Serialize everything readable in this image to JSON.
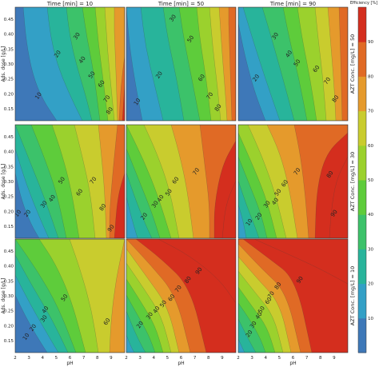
{
  "chart_data": {
    "type": "contour",
    "col_titles": [
      "Time [min] = 10",
      "Time [min] = 50",
      "Time [min] = 90"
    ],
    "row_titles": [
      "AZT Conc. [mg/L] = 50",
      "AZT Conc. [mg/L] = 30",
      "AZT Conc. [mg/L] = 10"
    ],
    "xlabel": "pH",
    "ylabel": "Ads. dose [g/L]",
    "x_ticks": [
      "2",
      "3",
      "4",
      "5",
      "6",
      "7",
      "8",
      "9"
    ],
    "y_ticks": [
      "0.15",
      "0.20",
      "0.25",
      "0.30",
      "0.35",
      "0.40",
      "0.45"
    ],
    "xlim": [
      2,
      10
    ],
    "ylim": [
      0.11,
      0.49
    ],
    "colorbar": {
      "label": "Efficiency [%]",
      "ticks": [
        "10",
        "20",
        "30",
        "40",
        "50",
        "60",
        "70",
        "80",
        "90"
      ],
      "range": [
        0,
        100
      ]
    },
    "levels": [
      10,
      20,
      30,
      40,
      50,
      60,
      70,
      80,
      90
    ],
    "colors": [
      "#3e78b8",
      "#33a0c6",
      "#28b49b",
      "#3cc26a",
      "#5ecc3b",
      "#9bd12d",
      "#c9cc2e",
      "#e59a2c",
      "#e06a25",
      "#d42e1e"
    ],
    "panels": [
      {
        "row": 0,
        "col": 0,
        "contour_labels": [
          {
            "text": "10",
            "x": 3.8,
            "y": 0.19
          },
          {
            "text": "20",
            "x": 5.2,
            "y": 0.33
          },
          {
            "text": "30",
            "x": 6.6,
            "y": 0.39
          },
          {
            "text": "40",
            "x": 7.0,
            "y": 0.31
          },
          {
            "text": "50",
            "x": 7.7,
            "y": 0.26
          },
          {
            "text": "60",
            "x": 8.4,
            "y": 0.23
          },
          {
            "text": "70",
            "x": 8.8,
            "y": 0.18
          },
          {
            "text": "80",
            "x": 9.0,
            "y": 0.14
          }
        ]
      },
      {
        "row": 0,
        "col": 1,
        "contour_labels": [
          {
            "text": "10",
            "x": 2.9,
            "y": 0.17
          },
          {
            "text": "20",
            "x": 4.5,
            "y": 0.26
          },
          {
            "text": "30",
            "x": 5.5,
            "y": 0.45
          },
          {
            "text": "50",
            "x": 6.8,
            "y": 0.38
          },
          {
            "text": "60",
            "x": 7.6,
            "y": 0.25
          },
          {
            "text": "70",
            "x": 8.2,
            "y": 0.19
          },
          {
            "text": "80",
            "x": 8.8,
            "y": 0.15
          }
        ]
      },
      {
        "row": 0,
        "col": 2,
        "contour_labels": [
          {
            "text": "20",
            "x": 3.4,
            "y": 0.25
          },
          {
            "text": "30",
            "x": 4.8,
            "y": 0.39
          },
          {
            "text": "40",
            "x": 5.8,
            "y": 0.33
          },
          {
            "text": "50",
            "x": 6.4,
            "y": 0.3
          },
          {
            "text": "60",
            "x": 7.8,
            "y": 0.28
          },
          {
            "text": "70",
            "x": 8.6,
            "y": 0.24
          },
          {
            "text": "80",
            "x": 9.2,
            "y": 0.18
          }
        ]
      },
      {
        "row": 1,
        "col": 0,
        "contour_labels": [
          {
            "text": "10",
            "x": 2.3,
            "y": 0.19
          },
          {
            "text": "20",
            "x": 3.0,
            "y": 0.19
          },
          {
            "text": "30",
            "x": 4.2,
            "y": 0.22
          },
          {
            "text": "40",
            "x": 4.8,
            "y": 0.24
          },
          {
            "text": "50",
            "x": 5.5,
            "y": 0.3
          },
          {
            "text": "60",
            "x": 6.8,
            "y": 0.26
          },
          {
            "text": "70",
            "x": 7.8,
            "y": 0.3
          },
          {
            "text": "80",
            "x": 8.5,
            "y": 0.21
          },
          {
            "text": "90",
            "x": 9.1,
            "y": 0.14
          }
        ]
      },
      {
        "row": 1,
        "col": 1,
        "contour_labels": [
          {
            "text": "20",
            "x": 3.4,
            "y": 0.18
          },
          {
            "text": "30",
            "x": 4.2,
            "y": 0.22
          },
          {
            "text": "40",
            "x": 4.6,
            "y": 0.24
          },
          {
            "text": "50",
            "x": 5.2,
            "y": 0.26
          },
          {
            "text": "60",
            "x": 5.7,
            "y": 0.3
          },
          {
            "text": "70",
            "x": 7.2,
            "y": 0.33
          }
        ]
      },
      {
        "row": 1,
        "col": 2,
        "contour_labels": [
          {
            "text": "10",
            "x": 2.9,
            "y": 0.16
          },
          {
            "text": "20",
            "x": 3.6,
            "y": 0.18
          },
          {
            "text": "30",
            "x": 4.2,
            "y": 0.22
          },
          {
            "text": "40",
            "x": 4.8,
            "y": 0.23
          },
          {
            "text": "50",
            "x": 5.0,
            "y": 0.26
          },
          {
            "text": "60",
            "x": 5.5,
            "y": 0.29
          },
          {
            "text": "70",
            "x": 6.4,
            "y": 0.33
          },
          {
            "text": "80",
            "x": 8.8,
            "y": 0.32
          },
          {
            "text": "90",
            "x": 9.1,
            "y": 0.19
          }
        ]
      },
      {
        "row": 2,
        "col": 0,
        "contour_labels": [
          {
            "text": "10",
            "x": 2.9,
            "y": 0.16
          },
          {
            "text": "20",
            "x": 3.4,
            "y": 0.19
          },
          {
            "text": "30",
            "x": 4.2,
            "y": 0.22
          },
          {
            "text": "40",
            "x": 4.3,
            "y": 0.25
          },
          {
            "text": "50",
            "x": 5.7,
            "y": 0.29
          },
          {
            "text": "60",
            "x": 8.8,
            "y": 0.21
          }
        ]
      },
      {
        "row": 2,
        "col": 1,
        "contour_labels": [
          {
            "text": "20",
            "x": 3.1,
            "y": 0.2
          },
          {
            "text": "30",
            "x": 3.8,
            "y": 0.23
          },
          {
            "text": "40",
            "x": 4.3,
            "y": 0.25
          },
          {
            "text": "50",
            "x": 4.8,
            "y": 0.27
          },
          {
            "text": "60",
            "x": 5.4,
            "y": 0.29
          },
          {
            "text": "70",
            "x": 5.9,
            "y": 0.32
          },
          {
            "text": "80",
            "x": 6.6,
            "y": 0.35
          },
          {
            "text": "90",
            "x": 7.4,
            "y": 0.38
          }
        ]
      },
      {
        "row": 2,
        "col": 2,
        "contour_labels": [
          {
            "text": "20",
            "x": 2.9,
            "y": 0.17
          },
          {
            "text": "30",
            "x": 3.2,
            "y": 0.2
          },
          {
            "text": "40",
            "x": 3.6,
            "y": 0.23
          },
          {
            "text": "50",
            "x": 3.8,
            "y": 0.25
          },
          {
            "text": "60",
            "x": 4.3,
            "y": 0.28
          },
          {
            "text": "70",
            "x": 4.5,
            "y": 0.3
          },
          {
            "text": "80",
            "x": 5.0,
            "y": 0.33
          },
          {
            "text": "90",
            "x": 6.6,
            "y": 0.35
          }
        ]
      }
    ]
  }
}
